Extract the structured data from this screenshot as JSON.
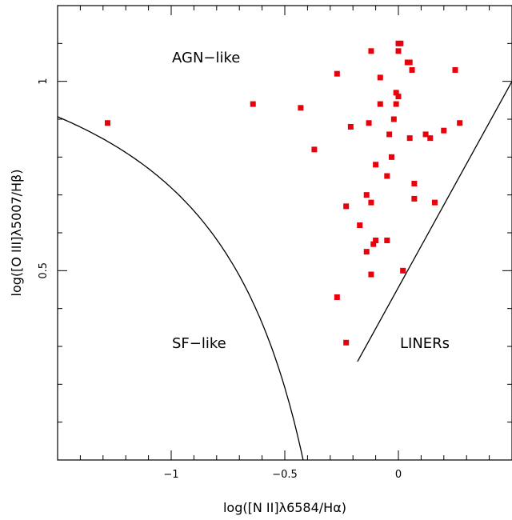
{
  "chart_data": {
    "type": "scatter",
    "title": "",
    "xlabel": "log([N II]λ6584/Hα)",
    "ylabel": "log([O III]λ5007/Hβ)",
    "xlim": [
      -1.5,
      0.5
    ],
    "ylim": [
      0.0,
      1.2
    ],
    "grid": false,
    "x_ticks": [
      -1,
      -0.5,
      0
    ],
    "x_tick_labels": [
      "−1",
      "−0.5",
      "0"
    ],
    "y_ticks": [
      0.5,
      1
    ],
    "y_tick_labels": [
      "0.5",
      "1"
    ],
    "region_labels": [
      "AGN−like",
      "SF−like",
      "LINERs"
    ],
    "marker_color": "#e8000b",
    "line_color": "#000000",
    "points": [
      {
        "x": 0.0,
        "y": 1.1
      },
      {
        "x": 0.01,
        "y": 1.1
      },
      {
        "x": 0.0,
        "y": 1.08
      },
      {
        "x": -0.12,
        "y": 1.08
      },
      {
        "x": 0.04,
        "y": 1.05
      },
      {
        "x": 0.05,
        "y": 1.05
      },
      {
        "x": 0.06,
        "y": 1.03
      },
      {
        "x": 0.25,
        "y": 1.03
      },
      {
        "x": -0.27,
        "y": 1.02
      },
      {
        "x": -0.08,
        "y": 1.01
      },
      {
        "x": -0.01,
        "y": 0.97
      },
      {
        "x": 0.0,
        "y": 0.96
      },
      {
        "x": -0.64,
        "y": 0.94
      },
      {
        "x": -0.08,
        "y": 0.94
      },
      {
        "x": -0.01,
        "y": 0.94
      },
      {
        "x": -0.43,
        "y": 0.93
      },
      {
        "x": -0.02,
        "y": 0.9
      },
      {
        "x": -0.13,
        "y": 0.89
      },
      {
        "x": 0.27,
        "y": 0.89
      },
      {
        "x": -1.28,
        "y": 0.89
      },
      {
        "x": -0.21,
        "y": 0.88
      },
      {
        "x": 0.2,
        "y": 0.87
      },
      {
        "x": 0.12,
        "y": 0.86
      },
      {
        "x": -0.04,
        "y": 0.86
      },
      {
        "x": 0.05,
        "y": 0.85
      },
      {
        "x": 0.14,
        "y": 0.85
      },
      {
        "x": -0.37,
        "y": 0.82
      },
      {
        "x": -0.03,
        "y": 0.8
      },
      {
        "x": -0.1,
        "y": 0.78
      },
      {
        "x": -0.05,
        "y": 0.75
      },
      {
        "x": 0.07,
        "y": 0.73
      },
      {
        "x": -0.14,
        "y": 0.7
      },
      {
        "x": 0.07,
        "y": 0.69
      },
      {
        "x": -0.12,
        "y": 0.68
      },
      {
        "x": 0.16,
        "y": 0.68
      },
      {
        "x": -0.23,
        "y": 0.67
      },
      {
        "x": -0.17,
        "y": 0.62
      },
      {
        "x": -0.1,
        "y": 0.58
      },
      {
        "x": -0.05,
        "y": 0.58
      },
      {
        "x": -0.11,
        "y": 0.57
      },
      {
        "x": -0.14,
        "y": 0.55
      },
      {
        "x": 0.02,
        "y": 0.5
      },
      {
        "x": -0.12,
        "y": 0.49
      },
      {
        "x": -0.27,
        "y": 0.43
      },
      {
        "x": -0.23,
        "y": 0.31
      }
    ],
    "curves": [
      {
        "name": "kauffmann",
        "type": "kauffmann"
      },
      {
        "name": "liner-line",
        "type": "line",
        "from": [
          -0.18,
          0.26
        ],
        "to": [
          0.5,
          1.0
        ]
      }
    ]
  }
}
